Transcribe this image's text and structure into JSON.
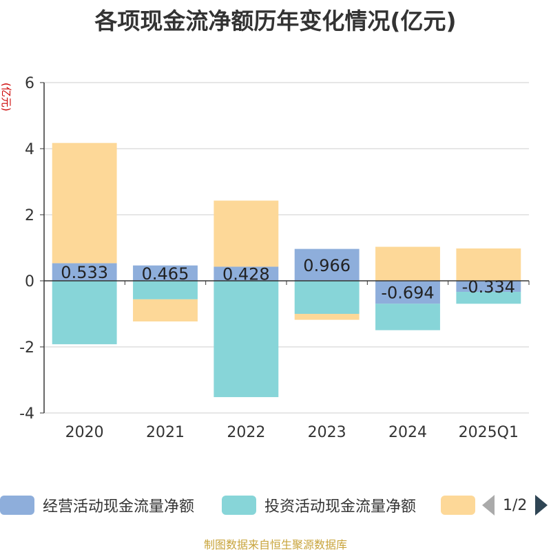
{
  "title": "各项现金流净额历年变化情况(亿元)",
  "source": "制图数据来自恒生聚源数据库",
  "legend_pager": "1/2",
  "colors": {
    "operating": "#8eaedb",
    "investing": "#87d5d8",
    "financing": "#fdd898",
    "grid": "#cccccc",
    "axis": "#333333",
    "unit": "#cc0000"
  },
  "chart_data": {
    "type": "bar",
    "stacked": true,
    "ylabel": "(亿元)",
    "ylim": [
      -4,
      6
    ],
    "yticks": [
      -4,
      -2,
      0,
      2,
      4,
      6
    ],
    "categories": [
      "2020",
      "2021",
      "2022",
      "2023",
      "2024",
      "2025Q1"
    ],
    "series": [
      {
        "name": "经营活动现金流量净额",
        "values": [
          0.533,
          0.465,
          0.428,
          0.966,
          -0.694,
          -0.334
        ],
        "labels": [
          "0.533",
          "0.465",
          "0.428",
          "0.966",
          "-0.694",
          "-0.334"
        ]
      },
      {
        "name": "投资活动现金流量净额",
        "values": [
          -1.92,
          -0.56,
          -3.52,
          -1.0,
          -0.8,
          -0.36
        ]
      },
      {
        "values": [
          3.64,
          -0.67,
          2.0,
          -0.18,
          1.03,
          0.98
        ]
      }
    ],
    "legend_position": "bottom"
  }
}
